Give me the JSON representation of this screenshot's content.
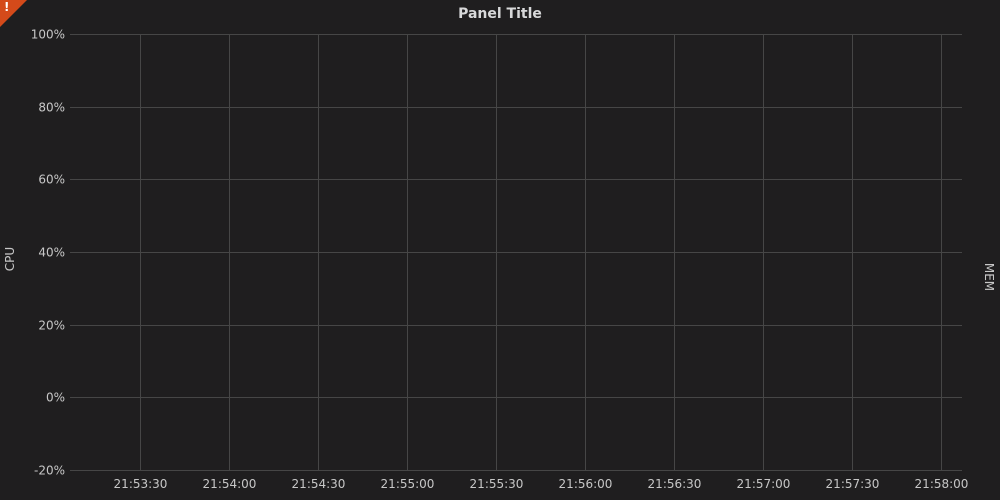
{
  "panel": {
    "title": "Panel Title",
    "error_glyph": "!",
    "error_color": "#d44a1a",
    "background": "#1f1e1f",
    "grid_color": "#464646"
  },
  "chart_data": {
    "type": "line",
    "title": "Panel Title",
    "ylabel": "CPU",
    "y2label": "MEM",
    "xlabel": "",
    "ylim": [
      -20,
      100
    ],
    "yticks": [
      "100%",
      "80%",
      "60%",
      "40%",
      "20%",
      "0%",
      "-20%"
    ],
    "ytick_values": [
      100,
      80,
      60,
      40,
      20,
      0,
      -20
    ],
    "xticks": [
      "21:53:30",
      "21:54:00",
      "21:54:30",
      "21:55:00",
      "21:55:30",
      "21:56:00",
      "21:56:30",
      "21:57:00",
      "21:57:30",
      "21:58:00"
    ],
    "series": [],
    "grid": true
  }
}
